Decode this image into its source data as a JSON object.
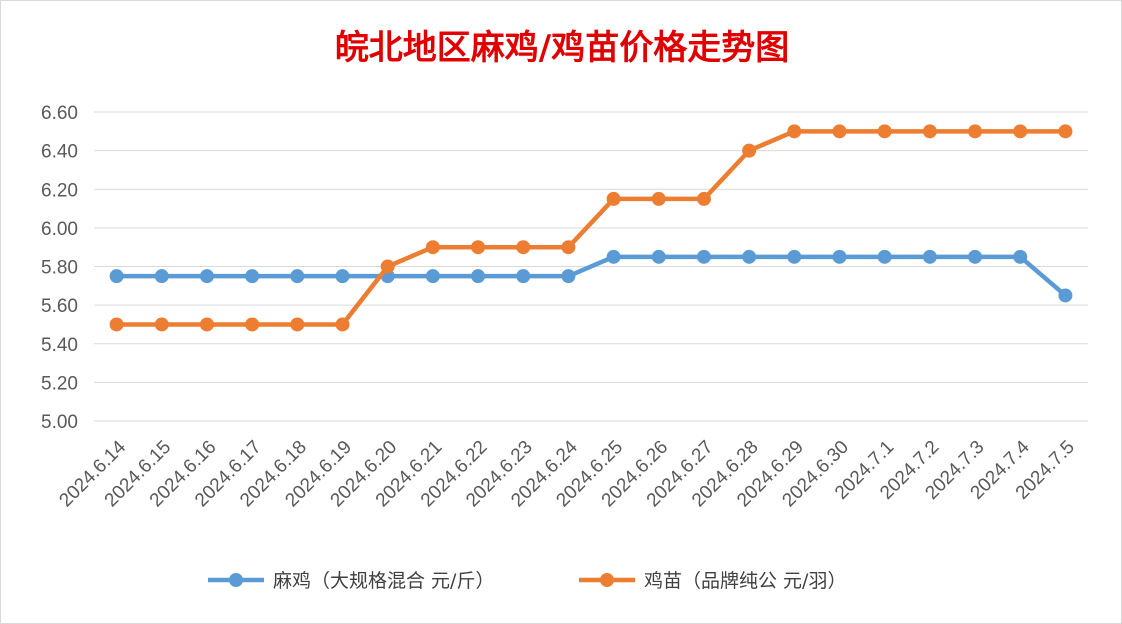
{
  "chart_data": {
    "type": "line",
    "title": "皖北地区麻鸡/鸡苗价格走势图",
    "categories": [
      "2024.6.14",
      "2024.6.15",
      "2024.6.16",
      "2024.6.17",
      "2024.6.18",
      "2024.6.19",
      "2024.6.20",
      "2024.6.21",
      "2024.6.22",
      "2024.6.23",
      "2024.6.24",
      "2024.6.25",
      "2024.6.26",
      "2024.6.27",
      "2024.6.28",
      "2024.6.29",
      "2024.6.30",
      "2024.7.1",
      "2024.7.2",
      "2024.7.3",
      "2024.7.4",
      "2024.7.5"
    ],
    "series": [
      {
        "name": "麻鸡（大规格混合 元/斤）",
        "color": "#5b9bd5",
        "values": [
          5.75,
          5.75,
          5.75,
          5.75,
          5.75,
          5.75,
          5.75,
          5.75,
          5.75,
          5.75,
          5.75,
          5.85,
          5.85,
          5.85,
          5.85,
          5.85,
          5.85,
          5.85,
          5.85,
          5.85,
          5.85,
          5.65
        ]
      },
      {
        "name": "鸡苗（品牌纯公 元/羽）",
        "color": "#ed7d31",
        "values": [
          5.5,
          5.5,
          5.5,
          5.5,
          5.5,
          5.5,
          5.8,
          5.9,
          5.9,
          5.9,
          5.9,
          6.15,
          6.15,
          6.15,
          6.4,
          6.5,
          6.5,
          6.5,
          6.5,
          6.5,
          6.5,
          6.5
        ]
      }
    ],
    "ylim": [
      5.0,
      6.6
    ],
    "yticks": [
      "5.00",
      "5.20",
      "5.40",
      "5.60",
      "5.80",
      "6.00",
      "6.20",
      "6.40",
      "6.60"
    ],
    "grid": true,
    "legend_position": "bottom"
  }
}
